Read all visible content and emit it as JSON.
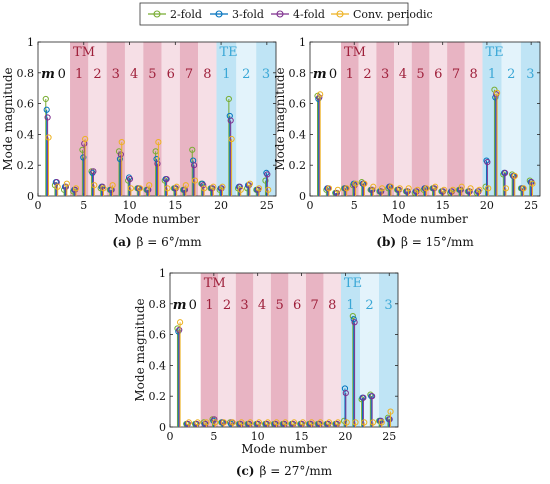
{
  "legend": [
    {
      "name": "2-fold",
      "color": "#77ac30"
    },
    {
      "name": "3-fold",
      "color": "#0072bd"
    },
    {
      "name": "4-fold",
      "color": "#7e2f8e"
    },
    {
      "name": "Conv. periodic",
      "color": "#edb120"
    }
  ],
  "colors": {
    "tm_band_dark": "#e8b4c3",
    "tm_band_light": "#f6dfe6",
    "te_band_dark": "#bfe4f5",
    "te_band_light": "#e3f3fb",
    "tm_label": "#9e1f3a",
    "te_label": "#3aa7d6"
  },
  "chart_data": [
    {
      "id": "a",
      "type": "stem",
      "caption_letter": "(a)",
      "caption_text": "β = 6°/mm",
      "xlabel": "Mode number",
      "ylabel": "Mode magnitude",
      "xlim": [
        0,
        26
      ],
      "ylim": [
        0,
        1
      ],
      "xticks": [
        0,
        5,
        10,
        15,
        20,
        25
      ],
      "yticks": [
        0,
        0.2,
        0.4,
        0.6,
        0.8,
        1
      ],
      "grid": false,
      "m_label": "m",
      "tm_label": "TM",
      "te_label": "TE",
      "order_labels": [
        "0",
        "1",
        "2",
        "3",
        "4",
        "5",
        "6",
        "7",
        "8",
        "1",
        "2",
        "3"
      ],
      "x": [
        1,
        2,
        3,
        4,
        5,
        6,
        7,
        8,
        9,
        10,
        11,
        12,
        13,
        14,
        15,
        16,
        17,
        18,
        19,
        20,
        21,
        22,
        23,
        24,
        25
      ],
      "series": [
        {
          "name": "2-fold",
          "values": [
            0.63,
            0.07,
            0.04,
            0.03,
            0.3,
            0.16,
            0.05,
            0.04,
            0.29,
            0.1,
            0.05,
            0.04,
            0.29,
            0.1,
            0.05,
            0.04,
            0.3,
            0.08,
            0.05,
            0.04,
            0.63,
            0.05,
            0.05,
            0.04,
            0.1
          ]
        },
        {
          "name": "3-fold",
          "values": [
            0.56,
            0.09,
            0.06,
            0.04,
            0.25,
            0.15,
            0.06,
            0.04,
            0.24,
            0.12,
            0.05,
            0.04,
            0.24,
            0.11,
            0.05,
            0.04,
            0.23,
            0.08,
            0.05,
            0.05,
            0.52,
            0.06,
            0.07,
            0.04,
            0.15
          ]
        },
        {
          "name": "4-fold",
          "values": [
            0.51,
            0.09,
            0.06,
            0.04,
            0.34,
            0.16,
            0.06,
            0.04,
            0.27,
            0.11,
            0.05,
            0.04,
            0.21,
            0.11,
            0.05,
            0.04,
            0.2,
            0.07,
            0.05,
            0.05,
            0.49,
            0.06,
            0.07,
            0.04,
            0.14
          ]
        },
        {
          "name": "Conv. periodic",
          "values": [
            0.38,
            0.06,
            0.08,
            0.05,
            0.37,
            0.07,
            0.05,
            0.07,
            0.35,
            0.05,
            0.05,
            0.07,
            0.35,
            0.05,
            0.06,
            0.07,
            0.1,
            0.05,
            0.06,
            0.06,
            0.37,
            0.04,
            0.08,
            0.05,
            0.04
          ]
        }
      ]
    },
    {
      "id": "b",
      "type": "stem",
      "caption_letter": "(b)",
      "caption_text": "β = 15°/mm",
      "xlabel": "Mode number",
      "ylabel": "Mode magnitude",
      "xlim": [
        0,
        26
      ],
      "ylim": [
        0,
        1
      ],
      "xticks": [
        0,
        5,
        10,
        15,
        20,
        25
      ],
      "yticks": [
        0,
        0.2,
        0.4,
        0.6,
        0.8,
        1
      ],
      "grid": false,
      "m_label": "m",
      "tm_label": "TM",
      "te_label": "TE",
      "order_labels": [
        "0",
        "1",
        "2",
        "3",
        "4",
        "5",
        "6",
        "7",
        "8",
        "1",
        "2",
        "3"
      ],
      "x": [
        1,
        2,
        3,
        4,
        5,
        6,
        7,
        8,
        9,
        10,
        11,
        12,
        13,
        14,
        15,
        16,
        17,
        18,
        19,
        20,
        21,
        22,
        23,
        24,
        25
      ],
      "series": [
        {
          "name": "2-fold",
          "values": [
            0.65,
            0.04,
            0.02,
            0.05,
            0.07,
            0.09,
            0.04,
            0.03,
            0.05,
            0.04,
            0.03,
            0.02,
            0.04,
            0.05,
            0.03,
            0.02,
            0.04,
            0.03,
            0.02,
            0.06,
            0.69,
            0.14,
            0.14,
            0.05,
            0.1
          ]
        },
        {
          "name": "3-fold",
          "values": [
            0.63,
            0.05,
            0.02,
            0.05,
            0.08,
            0.08,
            0.04,
            0.03,
            0.06,
            0.04,
            0.03,
            0.03,
            0.05,
            0.05,
            0.03,
            0.03,
            0.04,
            0.03,
            0.03,
            0.23,
            0.64,
            0.15,
            0.13,
            0.05,
            0.09
          ]
        },
        {
          "name": "4-fold",
          "values": [
            0.64,
            0.05,
            0.02,
            0.05,
            0.07,
            0.08,
            0.04,
            0.03,
            0.06,
            0.04,
            0.03,
            0.03,
            0.05,
            0.05,
            0.03,
            0.03,
            0.04,
            0.03,
            0.03,
            0.22,
            0.66,
            0.15,
            0.13,
            0.05,
            0.09
          ]
        },
        {
          "name": "Conv. periodic",
          "values": [
            0.66,
            0.05,
            0.04,
            0.05,
            0.08,
            0.08,
            0.06,
            0.05,
            0.06,
            0.05,
            0.05,
            0.04,
            0.05,
            0.06,
            0.04,
            0.04,
            0.06,
            0.05,
            0.04,
            0.05,
            0.67,
            0.05,
            0.13,
            0.05,
            0.08
          ]
        }
      ]
    },
    {
      "id": "c",
      "type": "stem",
      "caption_letter": "(c)",
      "caption_text": "β = 27°/mm",
      "xlabel": "Mode number",
      "ylabel": "Mode magnitude",
      "xlim": [
        0,
        26
      ],
      "ylim": [
        0,
        1
      ],
      "xticks": [
        0,
        5,
        10,
        15,
        20,
        25
      ],
      "yticks": [
        0,
        0.2,
        0.4,
        0.6,
        0.8,
        1
      ],
      "grid": false,
      "m_label": "m",
      "tm_label": "TM",
      "te_label": "TE",
      "order_labels": [
        "0",
        "1",
        "2",
        "3",
        "4",
        "5",
        "6",
        "7",
        "8",
        "1",
        "2",
        "3"
      ],
      "x": [
        1,
        2,
        3,
        4,
        5,
        6,
        7,
        8,
        9,
        10,
        11,
        12,
        13,
        14,
        15,
        16,
        17,
        18,
        19,
        20,
        21,
        22,
        23,
        24,
        25
      ],
      "series": [
        {
          "name": "2-fold",
          "values": [
            0.64,
            0.02,
            0.02,
            0.03,
            0.05,
            0.03,
            0.03,
            0.02,
            0.02,
            0.02,
            0.02,
            0.02,
            0.02,
            0.02,
            0.02,
            0.02,
            0.02,
            0.02,
            0.02,
            0.04,
            0.72,
            0.18,
            0.21,
            0.04,
            0.06
          ]
        },
        {
          "name": "3-fold",
          "values": [
            0.62,
            0.02,
            0.02,
            0.02,
            0.04,
            0.03,
            0.02,
            0.02,
            0.02,
            0.02,
            0.02,
            0.02,
            0.02,
            0.02,
            0.02,
            0.02,
            0.02,
            0.02,
            0.02,
            0.25,
            0.7,
            0.19,
            0.2,
            0.04,
            0.05
          ]
        },
        {
          "name": "4-fold",
          "values": [
            0.63,
            0.02,
            0.02,
            0.02,
            0.05,
            0.03,
            0.03,
            0.02,
            0.02,
            0.02,
            0.02,
            0.02,
            0.02,
            0.02,
            0.02,
            0.02,
            0.02,
            0.02,
            0.02,
            0.22,
            0.68,
            0.19,
            0.2,
            0.04,
            0.05
          ]
        },
        {
          "name": "Conv. periodic",
          "values": [
            0.68,
            0.03,
            0.03,
            0.03,
            0.03,
            0.03,
            0.03,
            0.03,
            0.03,
            0.03,
            0.03,
            0.03,
            0.03,
            0.03,
            0.03,
            0.03,
            0.03,
            0.03,
            0.03,
            0.03,
            0.03,
            0.03,
            0.03,
            0.03,
            0.1
          ]
        }
      ]
    }
  ]
}
